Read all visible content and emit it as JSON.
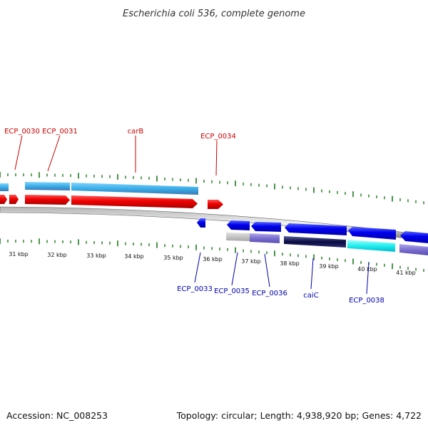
{
  "title": "Escherichia coli 536, complete genome",
  "footer": {
    "accession": "Accession: NC_008253",
    "summary": "Topology: circular; Length: 4,938,920 bp; Genes: 4,722"
  },
  "colors": {
    "forward_label": "#cc0000",
    "reverse_label": "#0000aa",
    "tick": "#1a7a1a",
    "backbone": "#888888"
  },
  "forward_labels": [
    "ECP_0030",
    "ECP_0031",
    "carB",
    "ECP_0034"
  ],
  "reverse_labels": [
    "ECP_0033",
    "ECP_0035",
    "ECP_0036",
    "caiC",
    "ECP_0038"
  ],
  "kbp_labels": [
    "31 kbp",
    "32 kbp",
    "33 kbp",
    "34 kbp",
    "35 kbp",
    "36 kbp",
    "37 kbp",
    "38 kbp",
    "39 kbp",
    "40 kbp",
    "41 kbp"
  ]
}
